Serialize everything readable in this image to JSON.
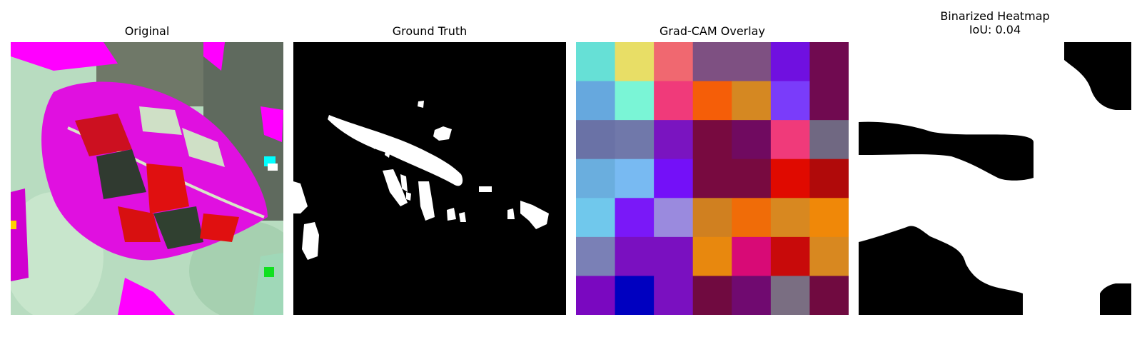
{
  "panels": [
    {
      "title": "Original"
    },
    {
      "title": "Ground Truth"
    },
    {
      "title": "Grad-CAM Overlay"
    },
    {
      "title": "Binarized Heatmap",
      "subtitle": "IoU: 0.04"
    }
  ],
  "gradcam_grid": {
    "rows": 7,
    "cols": 7,
    "colors": [
      [
        "#66e0d6",
        "#e8de66",
        "#f06870",
        "#7e5082",
        "#7e5082",
        "#7010e0",
        "#700a50"
      ],
      [
        "#66a8de",
        "#7af5d6",
        "#f03a7a",
        "#f55e08",
        "#d58822",
        "#7a3cfa",
        "#700a50"
      ],
      [
        "#6a72a6",
        "#7078aa",
        "#7a14c0",
        "#780a40",
        "#700a60",
        "#f03a7a",
        "#706882"
      ],
      [
        "#6aaede",
        "#78baf2",
        "#7410f8",
        "#780a40",
        "#780a40",
        "#e00a00",
        "#b00a0a"
      ],
      [
        "#70c8ec",
        "#7a18f8",
        "#9a8ade",
        "#d08020",
        "#f06c08",
        "#d88820",
        "#f08808"
      ],
      [
        "#7a80b6",
        "#7a10c0",
        "#7a10c0",
        "#e8880e",
        "#d80a76",
        "#c80a0a",
        "#d88820"
      ],
      [
        "#7a08c0",
        "#0000c0",
        "#7a10c0",
        "#700a40",
        "#700a70",
        "#7a6e82",
        "#700a40"
      ]
    ]
  }
}
